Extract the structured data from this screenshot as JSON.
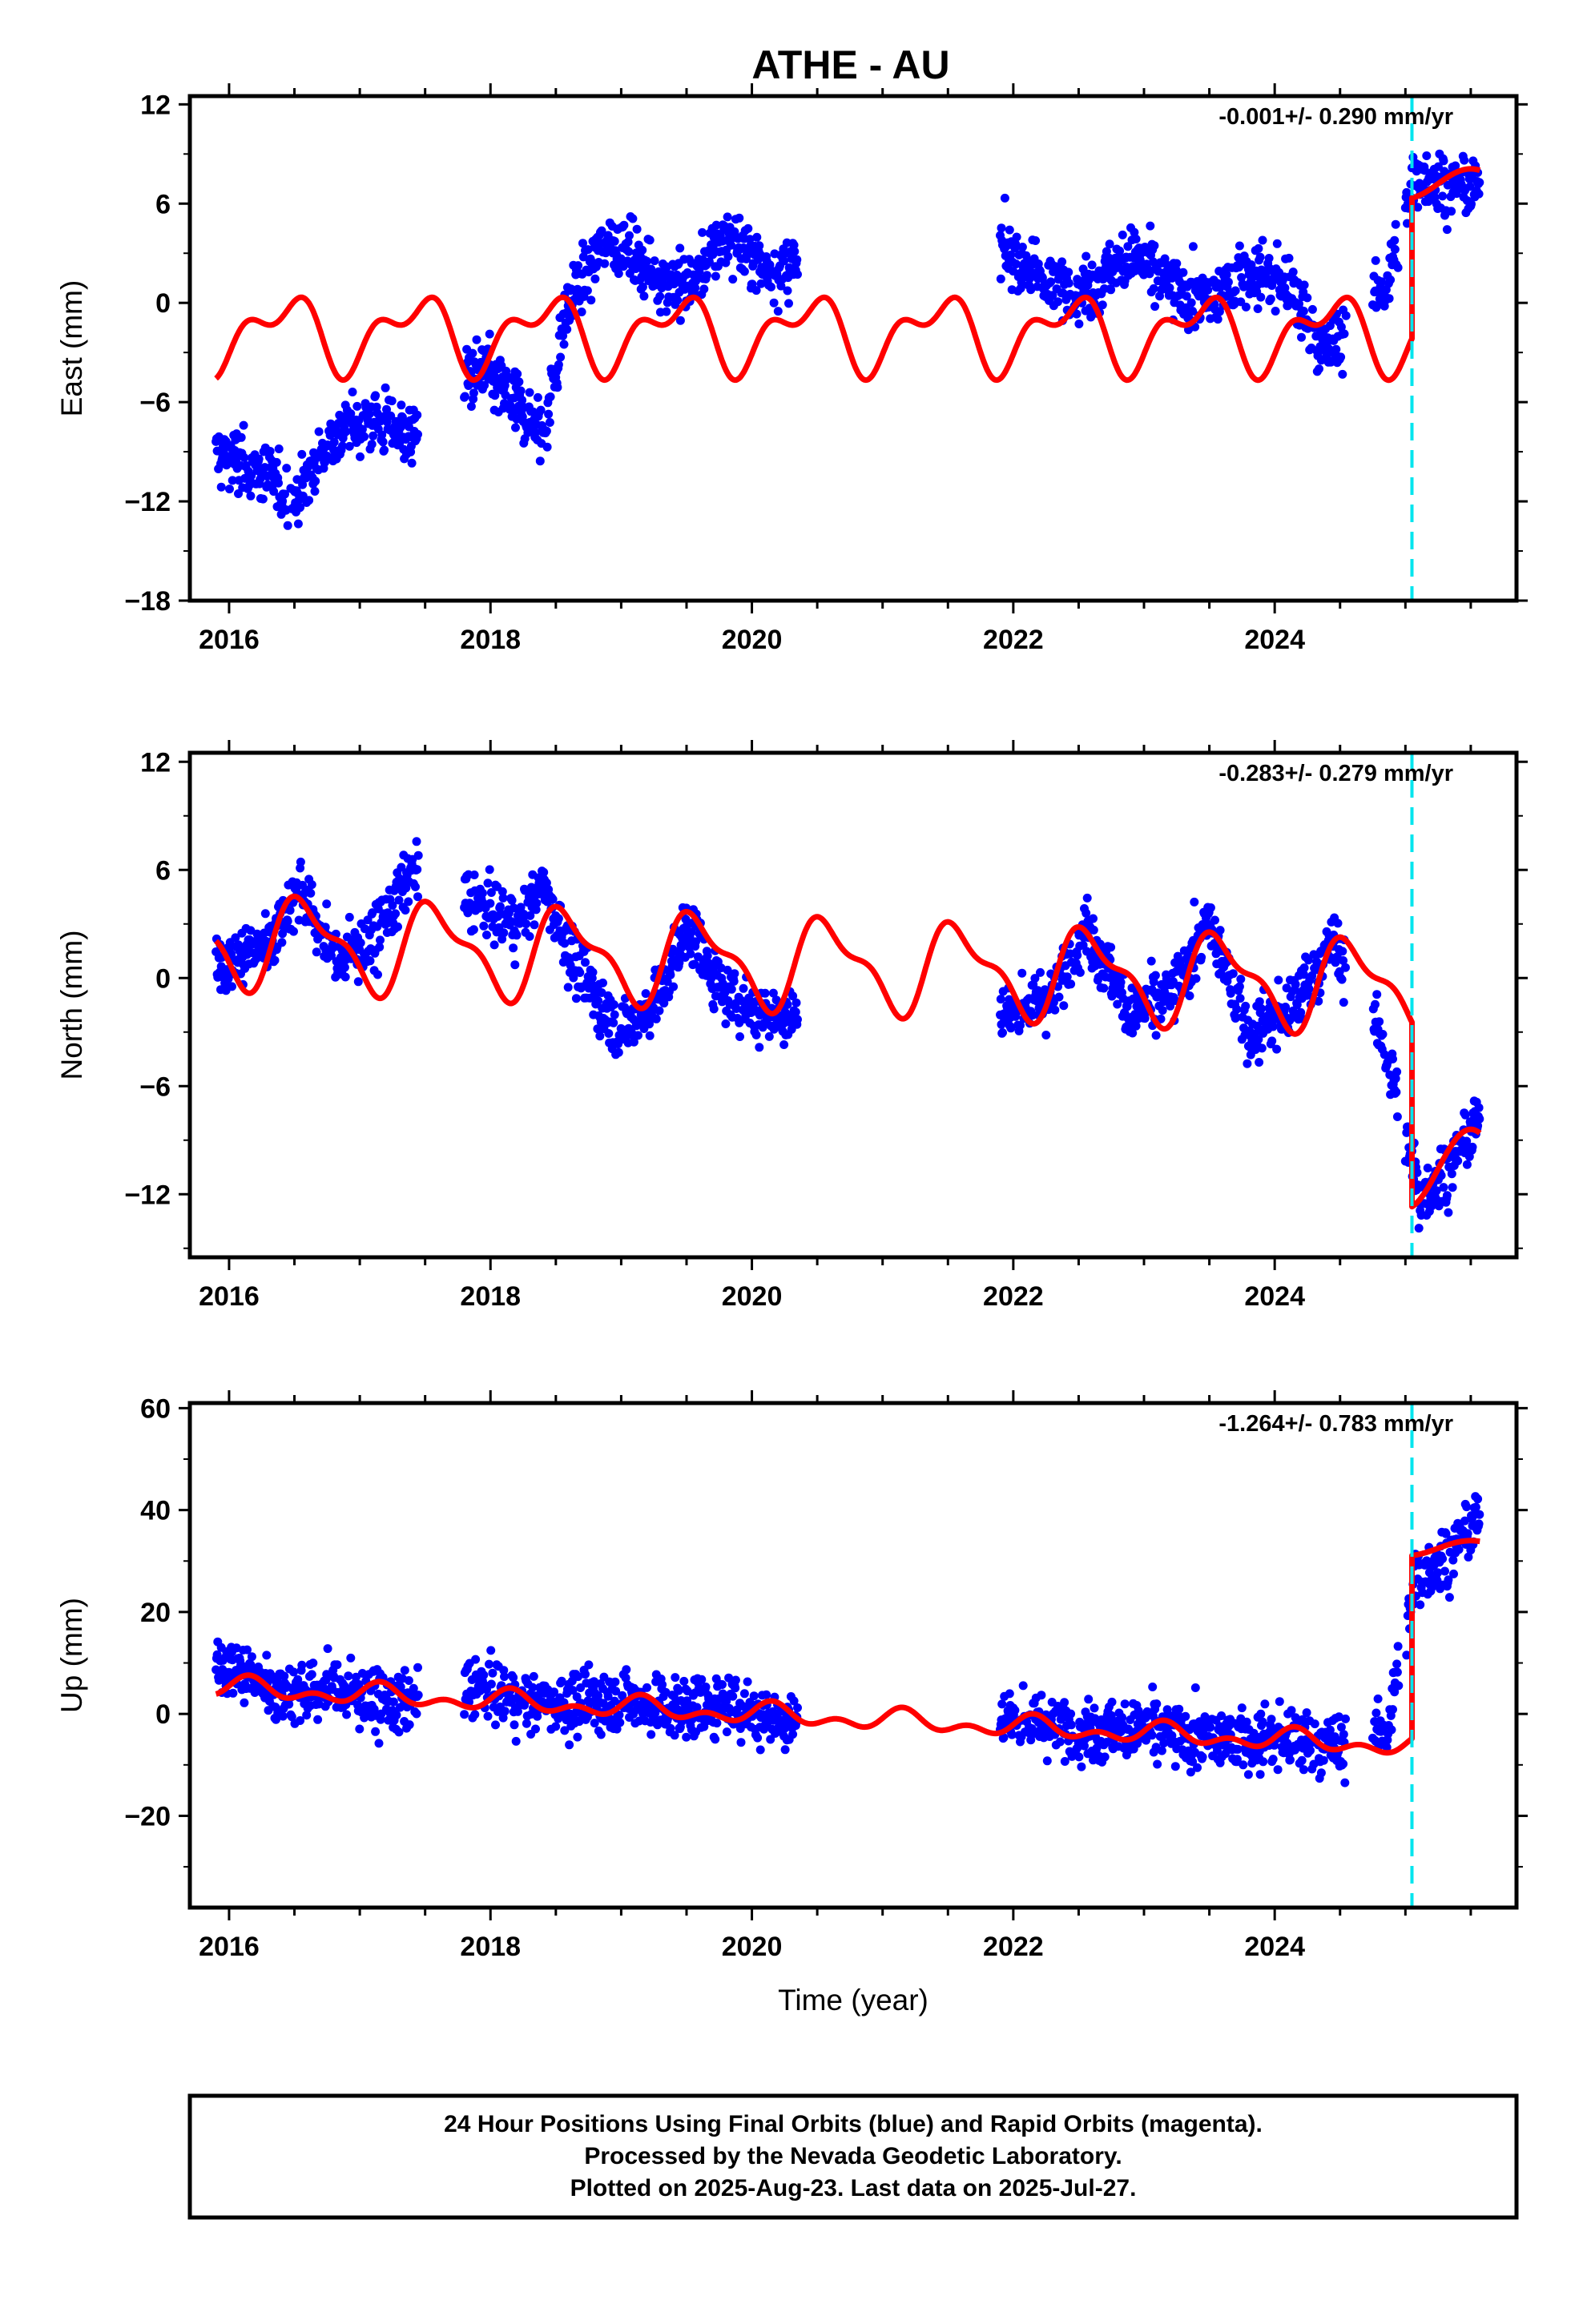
{
  "title": "ATHE - AU",
  "caption": [
    "24 Hour Positions Using Final Orbits (blue) and Rapid Orbits (magenta).",
    "Processed by the Nevada Geodetic Laboratory.",
    "Plotted on 2025-Aug-23. Last data on 2025-Jul-27."
  ],
  "colors": {
    "final_orbits": "#0000ff",
    "model_fit": "#ff0000",
    "offset_marker": "#00e5ee",
    "frame": "#000000"
  },
  "chart_data": [
    {
      "type": "scatter",
      "name": "east",
      "ylabel": "East (mm)",
      "xlabel": "",
      "xlim": [
        2015.7,
        2025.85
      ],
      "ylim": [
        -18,
        12.5
      ],
      "xticks": [
        2016,
        2018,
        2020,
        2022,
        2024
      ],
      "yticks": [
        -18,
        -12,
        -6,
        0,
        6,
        12
      ],
      "rate_text": "-0.001+/- 0.290 mm/yr",
      "offset_epoch": 2025.05,
      "data_spans": [
        [
          2015.9,
          2017.45
        ],
        [
          2017.8,
          2018.45
        ],
        [
          2018.45,
          2020.35
        ],
        [
          2021.9,
          2024.55
        ],
        [
          2024.75,
          2024.95
        ],
        [
          2025.0,
          2025.57
        ]
      ],
      "points_summary": [
        [
          2015.9,
          -9
        ],
        [
          2016.2,
          -10
        ],
        [
          2016.5,
          -12
        ],
        [
          2016.8,
          -8
        ],
        [
          2017.1,
          -7
        ],
        [
          2017.4,
          -8
        ],
        [
          2017.9,
          -4
        ],
        [
          2018.2,
          -6
        ],
        [
          2018.4,
          -8
        ],
        [
          2018.6,
          0
        ],
        [
          2018.9,
          4
        ],
        [
          2019.2,
          2
        ],
        [
          2019.5,
          1
        ],
        [
          2019.8,
          4
        ],
        [
          2020.1,
          2
        ],
        [
          2021.95,
          3
        ],
        [
          2022.3,
          1
        ],
        [
          2022.6,
          1
        ],
        [
          2022.9,
          3
        ],
        [
          2023.2,
          1
        ],
        [
          2023.5,
          0
        ],
        [
          2023.8,
          2
        ],
        [
          2024.1,
          1
        ],
        [
          2024.4,
          -3
        ],
        [
          2024.85,
          1
        ],
        [
          2025.1,
          8
        ],
        [
          2025.3,
          7
        ],
        [
          2025.55,
          7
        ]
      ],
      "model": {
        "pre": {
          "offset": -1.8,
          "trend": -0.001,
          "t0": 2020.5,
          "annual_sin": 0.9,
          "annual_cos": -1.6,
          "semi_sin": 1.1,
          "semi_cos": 0.3
        },
        "post": {
          "level": 7.2,
          "annual_amp": 0.9
        }
      }
    },
    {
      "type": "scatter",
      "name": "north",
      "ylabel": "North (mm)",
      "xlabel": "",
      "xlim": [
        2015.7,
        2025.85
      ],
      "ylim": [
        -15.5,
        12.5
      ],
      "xticks": [
        2016,
        2018,
        2020,
        2022,
        2024
      ],
      "yticks": [
        -12,
        -6,
        0,
        6,
        12
      ],
      "rate_text": "-0.283+/- 0.279 mm/yr",
      "offset_epoch": 2025.05,
      "data_spans": [
        [
          2015.9,
          2017.45
        ],
        [
          2017.8,
          2018.45
        ],
        [
          2018.45,
          2020.35
        ],
        [
          2021.9,
          2024.55
        ],
        [
          2024.75,
          2024.95
        ],
        [
          2025.0,
          2025.57
        ]
      ],
      "points_summary": [
        [
          2016.0,
          1
        ],
        [
          2016.3,
          2
        ],
        [
          2016.55,
          5
        ],
        [
          2016.8,
          1
        ],
        [
          2017.1,
          2
        ],
        [
          2017.4,
          6
        ],
        [
          2017.9,
          4
        ],
        [
          2018.2,
          3
        ],
        [
          2018.4,
          5
        ],
        [
          2018.7,
          0
        ],
        [
          2019.0,
          -3
        ],
        [
          2019.3,
          -1
        ],
        [
          2019.5,
          3
        ],
        [
          2019.8,
          -1
        ],
        [
          2020.1,
          -2
        ],
        [
          2021.95,
          -2
        ],
        [
          2022.3,
          -1
        ],
        [
          2022.55,
          3
        ],
        [
          2022.9,
          -2
        ],
        [
          2023.2,
          -1
        ],
        [
          2023.5,
          3
        ],
        [
          2023.8,
          -3
        ],
        [
          2024.1,
          -2
        ],
        [
          2024.45,
          2
        ],
        [
          2024.85,
          -4
        ],
        [
          2025.1,
          -12
        ],
        [
          2025.3,
          -11
        ],
        [
          2025.55,
          -8
        ]
      ],
      "model": {
        "pre": {
          "offset": 0.8,
          "trend": -0.283,
          "t0": 2020.5,
          "annual_sin": -1.2,
          "annual_cos": -1.9,
          "semi_sin": -0.6,
          "semi_cos": 0.7
        },
        "post": {
          "level": -10.6,
          "annual_amp": 2.2
        }
      }
    },
    {
      "type": "scatter",
      "name": "up",
      "ylabel": "Up (mm)",
      "xlabel": "Time (year)",
      "xlim": [
        2015.7,
        2025.85
      ],
      "ylim": [
        -38,
        61
      ],
      "xticks": [
        2016,
        2018,
        2020,
        2022,
        2024
      ],
      "yticks": [
        -20,
        0,
        20,
        40,
        60
      ],
      "rate_text": "-1.264+/- 0.783 mm/yr",
      "offset_epoch": 2025.05,
      "data_spans": [
        [
          2015.9,
          2017.45
        ],
        [
          2017.8,
          2018.45
        ],
        [
          2018.45,
          2020.35
        ],
        [
          2021.9,
          2024.55
        ],
        [
          2024.75,
          2024.95
        ],
        [
          2025.0,
          2025.57
        ]
      ],
      "points_summary": [
        [
          2016.0,
          10
        ],
        [
          2016.4,
          4
        ],
        [
          2016.8,
          5
        ],
        [
          2017.2,
          2
        ],
        [
          2017.9,
          5
        ],
        [
          2018.3,
          2
        ],
        [
          2018.7,
          2
        ],
        [
          2019.0,
          3
        ],
        [
          2019.4,
          1
        ],
        [
          2019.8,
          2
        ],
        [
          2020.2,
          -1
        ],
        [
          2022.0,
          -1
        ],
        [
          2022.5,
          -3
        ],
        [
          2023.0,
          -3
        ],
        [
          2023.5,
          -5
        ],
        [
          2024.0,
          -5
        ],
        [
          2024.5,
          -6
        ],
        [
          2024.85,
          -4
        ],
        [
          2025.1,
          28
        ],
        [
          2025.3,
          30
        ],
        [
          2025.55,
          38
        ]
      ],
      "model": {
        "pre": {
          "offset": -0.6,
          "trend": -1.264,
          "t0": 2020.5,
          "annual_sin": 1.2,
          "annual_cos": 0.8,
          "semi_sin": 1.2,
          "semi_cos": -0.4
        },
        "post": {
          "level": 32.5,
          "annual_amp": 1.5
        }
      }
    }
  ]
}
